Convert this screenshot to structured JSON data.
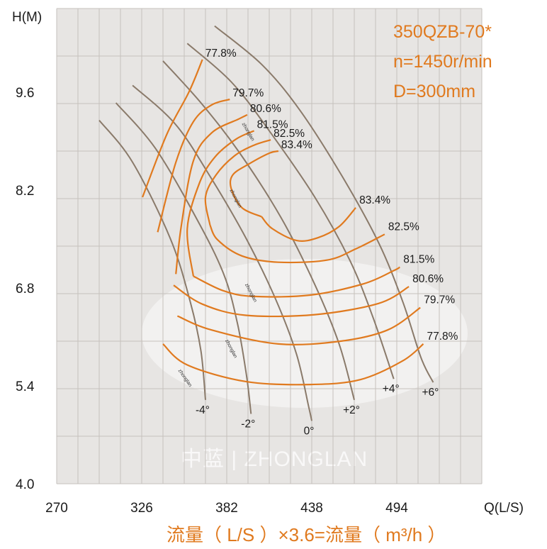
{
  "chart_data": {
    "type": "line",
    "xlabel": "Q(L/S)",
    "ylabel": "H(M)",
    "x_ticks": [
      270,
      326,
      382,
      438,
      494
    ],
    "y_ticks": [
      4.0,
      5.4,
      6.8,
      8.2,
      9.6
    ],
    "xlim": [
      270,
      550
    ],
    "ylim": [
      4.0,
      10.8
    ],
    "grid": true,
    "annotations": [
      "350QZB-70*",
      "n=1450r/min",
      "D=300mm"
    ],
    "watermark": "中蓝 | ZHONGLAN",
    "curve_tag": "zhonglan",
    "footer_note": "流量（ L/S ）×3.6=流量（ m³/h ）",
    "colors": {
      "efficiency": "#e07a1f",
      "blade_angle": "#8a7a6a",
      "grid": "#c6c1bc",
      "plot_bg": "#e7e5e3"
    },
    "efficiency_contours": [
      {
        "name": "77.8%",
        "left_label": "77.8%",
        "right_label": "77.8%",
        "upper": [
          [
            326.5,
            8.1
          ],
          [
            342.5,
            9.0
          ],
          [
            357,
            9.6
          ],
          [
            366,
            10.07
          ]
        ],
        "lower": [
          [
            340,
            6.0
          ],
          [
            356,
            5.7
          ],
          [
            395,
            5.46
          ],
          [
            437,
            5.42
          ],
          [
            470,
            5.49
          ],
          [
            498,
            5.76
          ],
          [
            511.5,
            6.0
          ]
        ]
      },
      {
        "name": "79.7%",
        "left_label": "79.7%",
        "right_label": "79.7%",
        "upper": [
          [
            336.5,
            7.6
          ],
          [
            348.5,
            8.6
          ],
          [
            360,
            9.18
          ],
          [
            372,
            9.42
          ],
          [
            384,
            9.5
          ]
        ],
        "lower": [
          [
            349.5,
            6.4
          ],
          [
            372,
            6.2
          ],
          [
            416,
            6.0
          ],
          [
            457,
            6.04
          ],
          [
            488,
            6.2
          ],
          [
            509.5,
            6.52
          ]
        ]
      },
      {
        "name": "80.6%",
        "left_label": "80.6%",
        "right_label": "80.6%",
        "upper": [
          [
            348.5,
            7.0
          ],
          [
            352,
            7.68
          ],
          [
            360,
            8.62
          ],
          [
            372,
            9.02
          ],
          [
            390,
            9.22
          ],
          [
            395.5,
            9.28
          ]
        ],
        "lower": [
          [
            347,
            6.84
          ],
          [
            366,
            6.57
          ],
          [
            394.5,
            6.41
          ],
          [
            440,
            6.42
          ],
          [
            482,
            6.58
          ],
          [
            502,
            6.82
          ]
        ]
      },
      {
        "name": "81.5%",
        "left_label": "81.5%",
        "right_label": "81.5%",
        "upper": [
          [
            360,
            6.97
          ],
          [
            356,
            7.65
          ],
          [
            364,
            8.3
          ],
          [
            374,
            8.67
          ],
          [
            388,
            8.93
          ],
          [
            400,
            9.05
          ]
        ],
        "lower": [
          [
            360,
            6.97
          ],
          [
            380,
            6.76
          ],
          [
            400,
            6.68
          ],
          [
            437,
            6.7
          ],
          [
            472,
            6.86
          ],
          [
            492,
            7.05
          ],
          [
            496,
            7.1
          ]
        ]
      },
      {
        "name": "82.5%",
        "left_label": "82.5%",
        "right_label": "82.5%",
        "upper": [
          [
            371,
            7.7
          ],
          [
            368,
            8.1
          ],
          [
            375,
            8.42
          ],
          [
            387,
            8.69
          ],
          [
            399.5,
            8.84
          ],
          [
            411,
            8.92
          ]
        ],
        "lower": [
          [
            371,
            7.7
          ],
          [
            376,
            7.49
          ],
          [
            392,
            7.26
          ],
          [
            416,
            7.17
          ],
          [
            448,
            7.2
          ],
          [
            467,
            7.36
          ],
          [
            486,
            7.57
          ]
        ]
      },
      {
        "name": "83.4%",
        "left_label": "83.4%",
        "right_label": "83.4%",
        "upper": [
          [
            405,
            7.82
          ],
          [
            392,
            7.95
          ],
          [
            385,
            8.22
          ],
          [
            386,
            8.42
          ],
          [
            397,
            8.58
          ],
          [
            410,
            8.73
          ],
          [
            416,
            8.76
          ]
        ],
        "lower": [
          [
            405,
            7.82
          ],
          [
            412,
            7.65
          ],
          [
            428,
            7.48
          ],
          [
            442,
            7.52
          ],
          [
            456,
            7.68
          ],
          [
            467,
            7.95
          ]
        ]
      }
    ],
    "blade_angle_curves": [
      {
        "name": "-4°",
        "label": "-4°",
        "points": [
          [
            298,
            9.2
          ],
          [
            320,
            8.6
          ],
          [
            345,
            7.5
          ],
          [
            358,
            6.6
          ],
          [
            365,
            5.9
          ],
          [
            368,
            5.2
          ]
        ]
      },
      {
        "name": "-2°",
        "label": "-2°",
        "points": [
          [
            309,
            9.45
          ],
          [
            335,
            8.8
          ],
          [
            362,
            7.8
          ],
          [
            380,
            7.0
          ],
          [
            389,
            6.3
          ],
          [
            395,
            5.55
          ],
          [
            398,
            5.0
          ]
        ]
      },
      {
        "name": "0°",
        "label": "0°",
        "points": [
          [
            320,
            9.7
          ],
          [
            348,
            9.15
          ],
          [
            371,
            8.4
          ],
          [
            395,
            7.5
          ],
          [
            414,
            6.65
          ],
          [
            428,
            5.85
          ],
          [
            436,
            5.1
          ],
          [
            438,
            4.9
          ]
        ]
      },
      {
        "name": "+2°",
        "label": "+2°",
        "points": [
          [
            340,
            10.05
          ],
          [
            365,
            9.45
          ],
          [
            390,
            8.75
          ],
          [
            418,
            7.8
          ],
          [
            440,
            6.85
          ],
          [
            456,
            6.0
          ],
          [
            466,
            5.2
          ]
        ]
      },
      {
        "name": "+4°",
        "label": "+4°",
        "points": [
          [
            356,
            10.3
          ],
          [
            385,
            9.75
          ],
          [
            410,
            9.05
          ],
          [
            440,
            8.1
          ],
          [
            463,
            7.2
          ],
          [
            478,
            6.4
          ],
          [
            492,
            5.5
          ]
        ]
      },
      {
        "name": "+6°",
        "label": "+6°",
        "points": [
          [
            374,
            10.55
          ],
          [
            405,
            10.0
          ],
          [
            430,
            9.35
          ],
          [
            458,
            8.4
          ],
          [
            482,
            7.45
          ],
          [
            498,
            6.6
          ],
          [
            510,
            5.8
          ],
          [
            518,
            5.45
          ]
        ]
      }
    ]
  }
}
